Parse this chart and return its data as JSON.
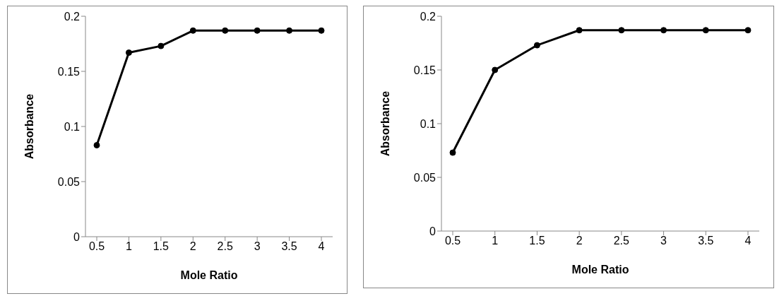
{
  "chart_data": [
    {
      "type": "line",
      "xlabel": "Mole Ratio",
      "ylabel": "Absorbance",
      "categories": [
        "0.5",
        "1",
        "1.5",
        "2",
        "2.5",
        "3",
        "3.5",
        "4"
      ],
      "series": [
        {
          "color": "#000000",
          "values": [
            0.083,
            0.167,
            0.173,
            0.187,
            0.187,
            0.187,
            0.187,
            0.187
          ]
        }
      ],
      "ylim": [
        0,
        0.2
      ],
      "yticks": [
        0,
        0.05,
        0.1,
        0.15,
        0.2
      ],
      "grid": false,
      "legend": false,
      "marker": "circle",
      "line_style": "solid"
    },
    {
      "type": "line",
      "xlabel": "Mole Ratio",
      "ylabel": "Absorbance",
      "categories": [
        "0.5",
        "1",
        "1.5",
        "2",
        "2.5",
        "3",
        "3.5",
        "4"
      ],
      "series": [
        {
          "color": "#000000",
          "values": [
            0.073,
            0.15,
            0.173,
            0.187,
            0.187,
            0.187,
            0.187,
            0.187
          ]
        }
      ],
      "ylim": [
        0,
        0.2
      ],
      "yticks": [
        0,
        0.05,
        0.1,
        0.15,
        0.2
      ],
      "grid": false,
      "legend": false,
      "marker": "circle",
      "line_style": "solid"
    }
  ]
}
